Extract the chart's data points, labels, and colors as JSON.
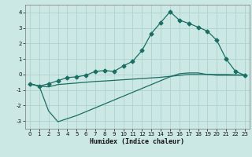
{
  "x": [
    0,
    1,
    2,
    3,
    4,
    5,
    6,
    7,
    8,
    9,
    10,
    11,
    12,
    13,
    14,
    15,
    16,
    17,
    18,
    19,
    20,
    21,
    22,
    23
  ],
  "line1_y": [
    -0.6,
    -0.75,
    -0.6,
    -0.4,
    -0.2,
    -0.15,
    -0.05,
    0.2,
    0.25,
    0.2,
    0.55,
    0.85,
    1.55,
    2.65,
    3.35,
    4.05,
    3.5,
    3.3,
    3.05,
    2.8,
    2.2,
    1.0,
    0.2,
    -0.05
  ],
  "line2_y": [
    -0.6,
    -0.75,
    -0.8,
    -0.65,
    -0.6,
    -0.55,
    -0.5,
    -0.45,
    -0.42,
    -0.38,
    -0.34,
    -0.3,
    -0.26,
    -0.22,
    -0.18,
    -0.12,
    -0.06,
    0.0,
    0.0,
    0.0,
    0.0,
    0.0,
    -0.02,
    -0.04
  ],
  "line3_y": [
    -0.6,
    -0.75,
    -2.35,
    -3.05,
    -2.85,
    -2.65,
    -2.4,
    -2.15,
    -1.9,
    -1.65,
    -1.4,
    -1.15,
    -0.9,
    -0.65,
    -0.4,
    -0.15,
    0.05,
    0.1,
    0.1,
    0.0,
    -0.05,
    -0.05,
    -0.05,
    -0.05
  ],
  "bg_color": "#cce8e4",
  "grid_color": "#aacfcc",
  "line_color": "#1a6e64",
  "xlabel": "Humidex (Indice chaleur)",
  "ylim": [
    -3.5,
    4.5
  ],
  "xlim": [
    -0.5,
    23.5
  ],
  "yticks": [
    -3,
    -2,
    -1,
    0,
    1,
    2,
    3,
    4
  ],
  "xticks": [
    0,
    1,
    2,
    3,
    4,
    5,
    6,
    7,
    8,
    9,
    10,
    11,
    12,
    13,
    14,
    15,
    16,
    17,
    18,
    19,
    20,
    21,
    22,
    23
  ],
  "marker": "D",
  "markersize": 2.5,
  "linewidth": 0.9,
  "tick_labelsize": 5.0,
  "xlabel_fontsize": 6.0
}
